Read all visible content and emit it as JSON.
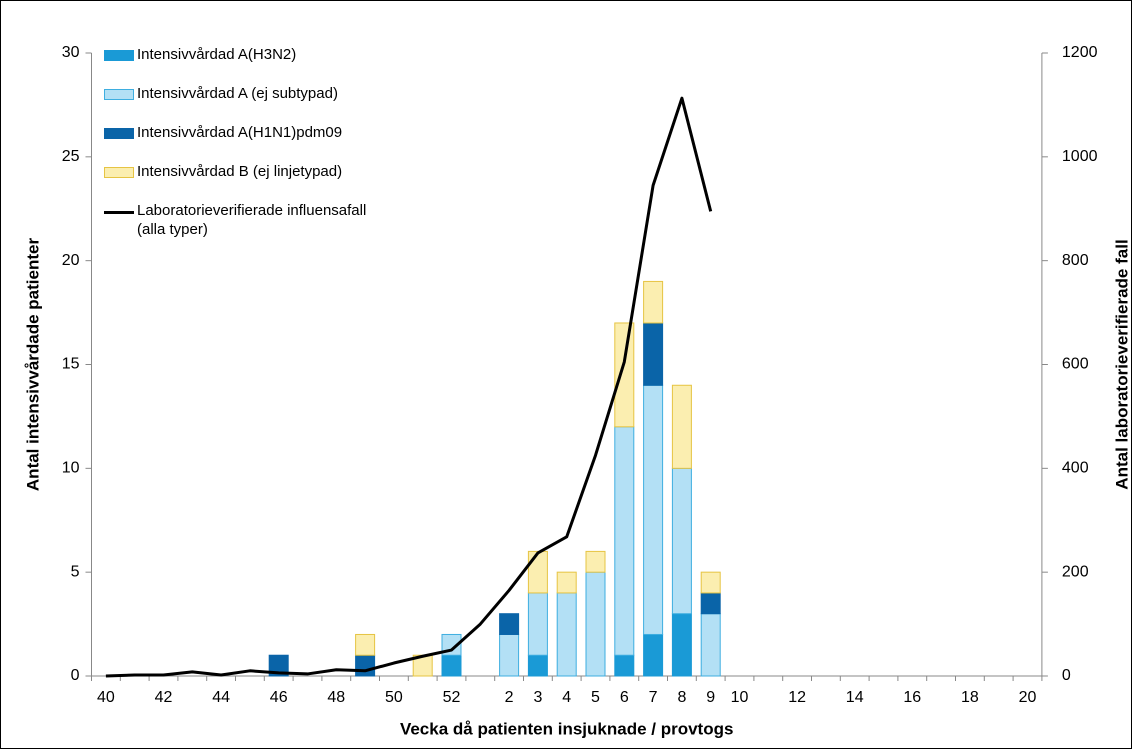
{
  "chart_data": {
    "type": "bar",
    "stacked": true,
    "xlabel": "Vecka då patienten insjuknade / provtogs",
    "ylabel": "Antal intensivvårdade patienter",
    "y2label": "Antal laboratorieverifierade fall",
    "categories": [
      "40",
      null,
      "42",
      null,
      "44",
      null,
      "46",
      null,
      "48",
      null,
      "50",
      null,
      "52",
      null,
      "2",
      "3",
      "4",
      "5",
      "6",
      "7",
      "8",
      "9",
      "10",
      null,
      "12",
      null,
      "14",
      null,
      "16",
      null,
      "18",
      null,
      "20"
    ],
    "ylim": [
      0,
      30
    ],
    "yticks": [
      0,
      5,
      10,
      15,
      20,
      25,
      30
    ],
    "y2lim": [
      0,
      1200
    ],
    "y2ticks": [
      0,
      200,
      400,
      600,
      800,
      1000,
      1200
    ],
    "legend": "upper left",
    "series": [
      {
        "name": "Intensivvårdad A(H3N2)",
        "color": "#1a9ad6",
        "edgecolor": "#1a9ad6",
        "values": [
          0,
          0,
          0,
          0,
          0,
          0,
          0,
          0,
          0,
          0,
          0,
          0,
          1,
          0,
          0,
          1,
          0,
          0,
          1,
          2,
          3,
          0,
          0,
          0,
          0,
          0,
          0,
          0,
          0,
          0,
          0,
          0,
          0
        ]
      },
      {
        "name": "Intensivvårdad A (ej subtypad)",
        "color": "#b3e0f5",
        "edgecolor": "#3eaee0",
        "values": [
          0,
          0,
          0,
          0,
          0,
          0,
          0,
          0,
          0,
          0,
          0,
          0,
          1,
          0,
          2,
          3,
          4,
          5,
          11,
          12,
          7,
          3,
          0,
          0,
          0,
          0,
          0,
          0,
          0,
          0,
          0,
          0,
          0
        ]
      },
      {
        "name": "Intensivvårdad A(H1N1)pdm09",
        "color": "#0a64a8",
        "edgecolor": "#0a64a8",
        "values": [
          0,
          0,
          0,
          0,
          0,
          0,
          1,
          0,
          0,
          1,
          0,
          0,
          0,
          0,
          1,
          0,
          0,
          0,
          0,
          3,
          0,
          1,
          0,
          0,
          0,
          0,
          0,
          0,
          0,
          0,
          0,
          0,
          0
        ]
      },
      {
        "name": "Intensivvårdad B (ej linjetypad)",
        "color": "#fbeeb0",
        "edgecolor": "#e6c443",
        "values": [
          0,
          0,
          0,
          0,
          0,
          0,
          0,
          0,
          0,
          1,
          0,
          1,
          0,
          0,
          0,
          2,
          1,
          1,
          5,
          2,
          4,
          1,
          0,
          0,
          0,
          0,
          0,
          0,
          0,
          0,
          0,
          0,
          0
        ]
      },
      {
        "name": "Laboratorieverifierade influensafall\n(alla typer)",
        "type": "line",
        "axis": "y2",
        "color": "#000000",
        "values": [
          0,
          2,
          2,
          8,
          2,
          10,
          6,
          4,
          12,
          10,
          25,
          38,
          50,
          100,
          165,
          237,
          268,
          425,
          605,
          945,
          1113,
          895,
          null,
          null,
          null,
          null,
          null,
          null,
          null,
          null,
          null,
          null,
          null
        ]
      }
    ]
  }
}
